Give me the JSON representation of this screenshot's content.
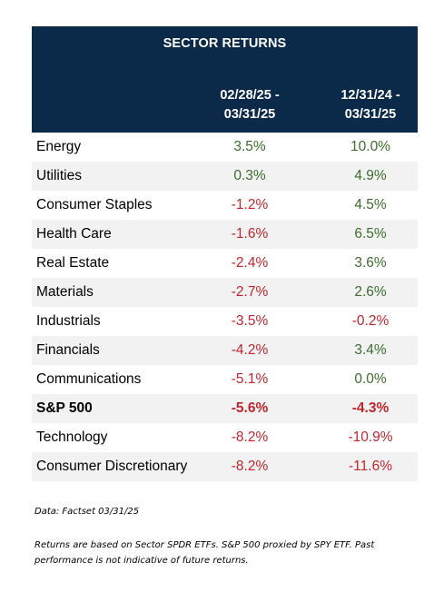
{
  "table": {
    "title": "SECTOR RETURNS",
    "col1_header_line1": "02/28/25 -",
    "col1_header_line2": "03/31/25",
    "col2_header_line1": "12/31/24 -",
    "col2_header_line2": "03/31/25",
    "rows": [
      {
        "sector": "Energy",
        "period1": "3.5%",
        "period2": "10.0%"
      },
      {
        "sector": "Utilities",
        "period1": "0.3%",
        "period2": "4.9%"
      },
      {
        "sector": "Consumer Staples",
        "period1": "-1.2%",
        "period2": "4.5%"
      },
      {
        "sector": "Health Care",
        "period1": "-1.6%",
        "period2": "6.5%"
      },
      {
        "sector": "Real Estate",
        "period1": "-2.4%",
        "period2": "3.6%"
      },
      {
        "sector": "Materials",
        "period1": "-2.7%",
        "period2": "2.6%"
      },
      {
        "sector": "Industrials",
        "period1": "-3.5%",
        "period2": "-0.2%"
      },
      {
        "sector": "Financials",
        "period1": "-4.2%",
        "period2": "3.4%"
      },
      {
        "sector": "Communications",
        "period1": "-5.1%",
        "period2": "0.0%"
      },
      {
        "sector": "S&P 500",
        "period1": "-5.6%",
        "period2": "-4.3%"
      },
      {
        "sector": "Technology",
        "period1": "-8.2%",
        "period2": "-10.9%"
      },
      {
        "sector": "Consumer Discretionary",
        "period1": "-8.2%",
        "period2": "-11.6%"
      }
    ]
  },
  "notes": {
    "source": "Data: Factset   03/31/25",
    "disclaimer": "Returns are based on Sector SPDR  ETFs. S&P 500 proxied by SPY ETF. Past performance is not indicative of future returns."
  },
  "colors": {
    "header_bg": "#0b2a4a",
    "positive": "#3e6b2f",
    "negative": "#c0272d",
    "row_shade": "#f2f2f2"
  }
}
